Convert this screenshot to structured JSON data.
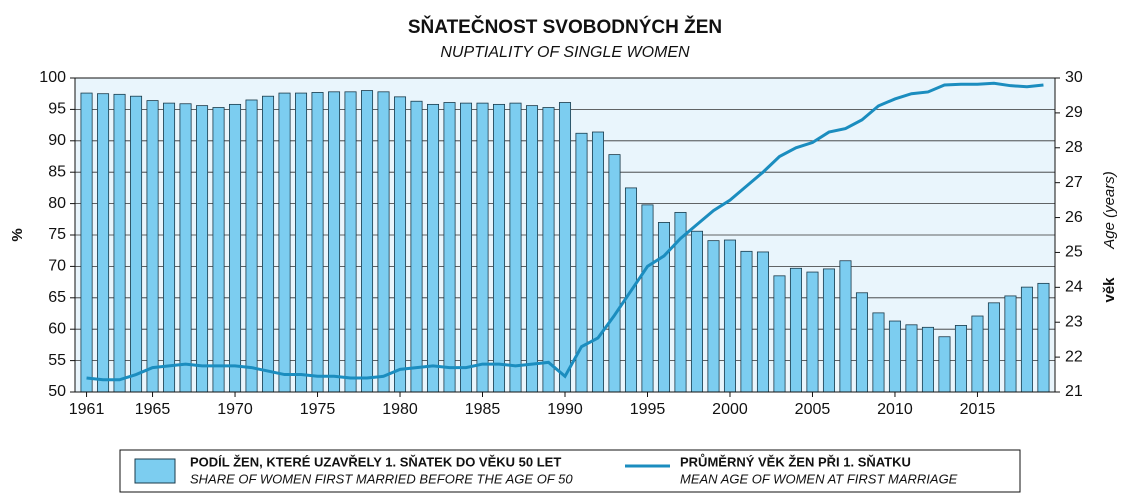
{
  "chart_data": {
    "type": "bar_line",
    "title": "SŇATEČNOST SVOBODNÝCH ŽEN",
    "subtitle": "NUPTIALITY OF SINGLE WOMEN",
    "ylabel": "%",
    "y2label": "věk",
    "y2label_en": "Age (years)",
    "x": [
      1961,
      1962,
      1963,
      1964,
      1965,
      1966,
      1967,
      1968,
      1969,
      1970,
      1971,
      1972,
      1973,
      1974,
      1975,
      1976,
      1977,
      1978,
      1979,
      1980,
      1981,
      1982,
      1983,
      1984,
      1985,
      1986,
      1987,
      1988,
      1989,
      1990,
      1991,
      1992,
      1993,
      1994,
      1995,
      1996,
      1997,
      1998,
      1999,
      2000,
      2001,
      2002,
      2003,
      2004,
      2005,
      2006,
      2007,
      2008,
      2009,
      2010,
      2011,
      2012,
      2013,
      2014,
      2015,
      2016,
      2017,
      2018,
      2019
    ],
    "xlim": [
      1960.3,
      2019.7
    ],
    "xticks": [
      1961,
      1965,
      1970,
      1975,
      1980,
      1985,
      1990,
      1995,
      2000,
      2005,
      2010,
      2015
    ],
    "ylim": [
      50,
      100
    ],
    "yticks": [
      50,
      55,
      60,
      65,
      70,
      75,
      80,
      85,
      90,
      95,
      100
    ],
    "y2lim": [
      21,
      30
    ],
    "y2ticks": [
      21,
      22,
      23,
      24,
      25,
      26,
      27,
      28,
      29,
      30
    ],
    "grid": true,
    "series": [
      {
        "name": "PODÍL ŽEN, KTERÉ UZAVŘELY 1. SŇATEK DO VĚKU 50 LET",
        "name_en": "SHARE OF WOMEN FIRST MARRIED BEFORE THE AGE OF 50",
        "type": "bar",
        "color": "#7ccdf0",
        "values": [
          97.6,
          97.5,
          97.4,
          97.1,
          96.4,
          96.0,
          95.9,
          95.6,
          95.3,
          95.8,
          96.5,
          97.1,
          97.6,
          97.6,
          97.7,
          97.8,
          97.8,
          98.0,
          97.8,
          97.0,
          96.3,
          95.8,
          96.1,
          96.0,
          96.0,
          95.8,
          96.0,
          95.6,
          95.3,
          96.1,
          91.2,
          91.4,
          87.8,
          82.5,
          79.8,
          77.0,
          78.6,
          75.6,
          74.1,
          74.2,
          72.4,
          72.3,
          68.5,
          69.7,
          69.1,
          69.6,
          70.9,
          65.8,
          62.6,
          61.3,
          60.7,
          60.3,
          58.8,
          60.6,
          62.1,
          64.2,
          65.3,
          66.7,
          67.3
        ]
      },
      {
        "name": "PRŮMĚRNÝ VĚK ŽEN PŘI 1. SŇATKU",
        "name_en": "MEAN AGE OF WOMEN AT FIRST MARRIAGE",
        "type": "line",
        "axis": "y2",
        "color": "#1b8dbf",
        "values": [
          21.4,
          21.35,
          21.35,
          21.5,
          21.7,
          21.75,
          21.8,
          21.75,
          21.75,
          21.75,
          21.7,
          21.6,
          21.5,
          21.5,
          21.45,
          21.45,
          21.4,
          21.4,
          21.45,
          21.65,
          21.7,
          21.75,
          21.7,
          21.7,
          21.8,
          21.8,
          21.75,
          21.8,
          21.85,
          21.45,
          22.3,
          22.55,
          23.2,
          23.9,
          24.6,
          24.9,
          25.4,
          25.8,
          26.2,
          26.5,
          26.9,
          27.3,
          27.75,
          28.0,
          28.15,
          28.45,
          28.55,
          28.8,
          29.2,
          29.4,
          29.55,
          29.6,
          29.8,
          29.82,
          29.82,
          29.85,
          29.78,
          29.75,
          29.8
        ]
      }
    ]
  }
}
